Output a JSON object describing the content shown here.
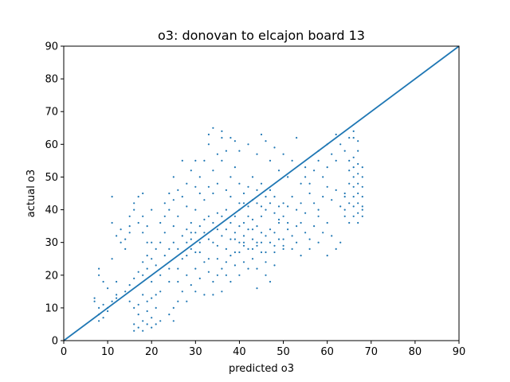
{
  "chart_data": {
    "type": "scatter",
    "title": "o3: donovan to elcajon board 13",
    "xlabel": "predicted o3",
    "ylabel": "actual o3",
    "xlim": [
      0,
      90
    ],
    "ylim": [
      0,
      90
    ],
    "xticks": [
      "0",
      "10",
      "20",
      "30",
      "40",
      "50",
      "60",
      "70",
      "80",
      "90"
    ],
    "yticks": [
      "0",
      "10",
      "20",
      "30",
      "40",
      "50",
      "60",
      "70",
      "80",
      "90"
    ],
    "grid": false,
    "colors": {
      "points": "#1f77b4",
      "line": "#1f77b4"
    },
    "reference_line": {
      "x": [
        0,
        90
      ],
      "y": [
        0,
        90
      ]
    },
    "points": [
      [
        7,
        12
      ],
      [
        7,
        13
      ],
      [
        8,
        6
      ],
      [
        8,
        8
      ],
      [
        8,
        10
      ],
      [
        9,
        11
      ],
      [
        9,
        7
      ],
      [
        10,
        9
      ],
      [
        10,
        10
      ],
      [
        11,
        12
      ],
      [
        12,
        13
      ],
      [
        12,
        14
      ],
      [
        8,
        20
      ],
      [
        8,
        22
      ],
      [
        9,
        18
      ],
      [
        10,
        16
      ],
      [
        12,
        18
      ],
      [
        11,
        25
      ],
      [
        12,
        32
      ],
      [
        11,
        36
      ],
      [
        13,
        34
      ],
      [
        13,
        30
      ],
      [
        14,
        28
      ],
      [
        14,
        31
      ],
      [
        15,
        33
      ],
      [
        15,
        35
      ],
      [
        15,
        38
      ],
      [
        16,
        40
      ],
      [
        16,
        42
      ],
      [
        17,
        36
      ],
      [
        17,
        44
      ],
      [
        18,
        38
      ],
      [
        18,
        33
      ],
      [
        19,
        30
      ],
      [
        19,
        35
      ],
      [
        20,
        40
      ],
      [
        14,
        15
      ],
      [
        15,
        17
      ],
      [
        16,
        19
      ],
      [
        17,
        21
      ],
      [
        18,
        20
      ],
      [
        18,
        24
      ],
      [
        19,
        22
      ],
      [
        19,
        26
      ],
      [
        20,
        18
      ],
      [
        20,
        25
      ],
      [
        21,
        28
      ],
      [
        21,
        23
      ],
      [
        22,
        20
      ],
      [
        22,
        30
      ],
      [
        23,
        26
      ],
      [
        23,
        33
      ],
      [
        24,
        28
      ],
      [
        24,
        22
      ],
      [
        25,
        30
      ],
      [
        25,
        35
      ],
      [
        16,
        3
      ],
      [
        16,
        5
      ],
      [
        17,
        4
      ],
      [
        17,
        8
      ],
      [
        18,
        3
      ],
      [
        18,
        6
      ],
      [
        19,
        5
      ],
      [
        19,
        9
      ],
      [
        20,
        4
      ],
      [
        20,
        7
      ],
      [
        21,
        5
      ],
      [
        21,
        10
      ],
      [
        19,
        12
      ],
      [
        20,
        13
      ],
      [
        18,
        14
      ],
      [
        17,
        11
      ],
      [
        22,
        6
      ],
      [
        16,
        10
      ],
      [
        15,
        12
      ],
      [
        21,
        14
      ],
      [
        22,
        36
      ],
      [
        23,
        38
      ],
      [
        23,
        42
      ],
      [
        24,
        40
      ],
      [
        24,
        45
      ],
      [
        25,
        43
      ],
      [
        25,
        50
      ],
      [
        26,
        46
      ],
      [
        26,
        38
      ],
      [
        27,
        44
      ],
      [
        27,
        55
      ],
      [
        28,
        48
      ],
      [
        28,
        41
      ],
      [
        29,
        52
      ],
      [
        29,
        36
      ],
      [
        30,
        47
      ],
      [
        30,
        55
      ],
      [
        30,
        40
      ],
      [
        26,
        28
      ],
      [
        27,
        32
      ],
      [
        27,
        25
      ],
      [
        28,
        30
      ],
      [
        28,
        34
      ],
      [
        29,
        28
      ],
      [
        29,
        31
      ],
      [
        30,
        33
      ],
      [
        30,
        27
      ],
      [
        31,
        35
      ],
      [
        31,
        30
      ],
      [
        32,
        37
      ],
      [
        32,
        33
      ],
      [
        33,
        31
      ],
      [
        33,
        38
      ],
      [
        34,
        36
      ],
      [
        34,
        30
      ],
      [
        35,
        34
      ],
      [
        35,
        39
      ],
      [
        31,
        45
      ],
      [
        31,
        50
      ],
      [
        32,
        43
      ],
      [
        32,
        55
      ],
      [
        33,
        47
      ],
      [
        33,
        60
      ],
      [
        34,
        52
      ],
      [
        34,
        45
      ],
      [
        35,
        57
      ],
      [
        35,
        48
      ],
      [
        36,
        55
      ],
      [
        36,
        62
      ],
      [
        37,
        46
      ],
      [
        37,
        58
      ],
      [
        38,
        50
      ],
      [
        38,
        44
      ],
      [
        39,
        53
      ],
      [
        39,
        61
      ],
      [
        40,
        48
      ],
      [
        40,
        42
      ],
      [
        36,
        32
      ],
      [
        36,
        38
      ],
      [
        37,
        34
      ],
      [
        37,
        40
      ],
      [
        38,
        31
      ],
      [
        38,
        36
      ],
      [
        39,
        33
      ],
      [
        39,
        38
      ],
      [
        40,
        30
      ],
      [
        40,
        35
      ],
      [
        41,
        36
      ],
      [
        41,
        32
      ],
      [
        42,
        38
      ],
      [
        42,
        34
      ],
      [
        43,
        31
      ],
      [
        43,
        37
      ],
      [
        44,
        35
      ],
      [
        44,
        29
      ],
      [
        45,
        33
      ],
      [
        45,
        38
      ],
      [
        40,
        40
      ],
      [
        41,
        42
      ],
      [
        41,
        45
      ],
      [
        42,
        41
      ],
      [
        42,
        47
      ],
      [
        43,
        43
      ],
      [
        43,
        50
      ],
      [
        44,
        42
      ],
      [
        44,
        46
      ],
      [
        45,
        41
      ],
      [
        45,
        48
      ],
      [
        46,
        44
      ],
      [
        46,
        40
      ],
      [
        47,
        46
      ],
      [
        47,
        42
      ],
      [
        48,
        39
      ],
      [
        48,
        44
      ],
      [
        49,
        41
      ],
      [
        49,
        37
      ],
      [
        50,
        42
      ],
      [
        26,
        18
      ],
      [
        27,
        15
      ],
      [
        28,
        20
      ],
      [
        29,
        17
      ],
      [
        30,
        22
      ],
      [
        31,
        19
      ],
      [
        32,
        24
      ],
      [
        33,
        21
      ],
      [
        34,
        18
      ],
      [
        35,
        25
      ],
      [
        36,
        22
      ],
      [
        37,
        20
      ],
      [
        38,
        26
      ],
      [
        39,
        23
      ],
      [
        40,
        27
      ],
      [
        41,
        24
      ],
      [
        42,
        28
      ],
      [
        43,
        25
      ],
      [
        44,
        30
      ],
      [
        45,
        27
      ],
      [
        24,
        8
      ],
      [
        25,
        10
      ],
      [
        26,
        12
      ],
      [
        25,
        6
      ],
      [
        28,
        12
      ],
      [
        30,
        15
      ],
      [
        32,
        14
      ],
      [
        34,
        14
      ],
      [
        36,
        15
      ],
      [
        38,
        18
      ],
      [
        40,
        20
      ],
      [
        44,
        16
      ],
      [
        46,
        24
      ],
      [
        48,
        27
      ],
      [
        50,
        28
      ],
      [
        33,
        63
      ],
      [
        34,
        65
      ],
      [
        36,
        64
      ],
      [
        38,
        62
      ],
      [
        40,
        58
      ],
      [
        42,
        60
      ],
      [
        44,
        57
      ],
      [
        45,
        63
      ],
      [
        46,
        61
      ],
      [
        47,
        55
      ],
      [
        48,
        59
      ],
      [
        49,
        52
      ],
      [
        50,
        57
      ],
      [
        51,
        50
      ],
      [
        52,
        55
      ],
      [
        53,
        62
      ],
      [
        54,
        48
      ],
      [
        55,
        53
      ],
      [
        46,
        32
      ],
      [
        47,
        30
      ],
      [
        48,
        33
      ],
      [
        49,
        31
      ],
      [
        50,
        29
      ],
      [
        51,
        34
      ],
      [
        52,
        32
      ],
      [
        53,
        30
      ],
      [
        54,
        36
      ],
      [
        55,
        33
      ],
      [
        56,
        31
      ],
      [
        57,
        35
      ],
      [
        58,
        38
      ],
      [
        59,
        33
      ],
      [
        60,
        36
      ],
      [
        61,
        32
      ],
      [
        50,
        38
      ],
      [
        51,
        41
      ],
      [
        52,
        44
      ],
      [
        53,
        40
      ],
      [
        54,
        42
      ],
      [
        55,
        39
      ],
      [
        56,
        45
      ],
      [
        57,
        42
      ],
      [
        58,
        40
      ],
      [
        59,
        44
      ],
      [
        60,
        47
      ],
      [
        61,
        43
      ],
      [
        62,
        46
      ],
      [
        63,
        41
      ],
      [
        64,
        44
      ],
      [
        55,
        50
      ],
      [
        56,
        48
      ],
      [
        57,
        52
      ],
      [
        58,
        55
      ],
      [
        59,
        50
      ],
      [
        60,
        53
      ],
      [
        61,
        57
      ],
      [
        62,
        55
      ],
      [
        63,
        60
      ],
      [
        64,
        58
      ],
      [
        65,
        62
      ],
      [
        66,
        64
      ],
      [
        62,
        63
      ],
      [
        60,
        60
      ],
      [
        58,
        58
      ],
      [
        64,
        38
      ],
      [
        64,
        40
      ],
      [
        64,
        45
      ],
      [
        65,
        36
      ],
      [
        65,
        42
      ],
      [
        65,
        48
      ],
      [
        65,
        52
      ],
      [
        65,
        55
      ],
      [
        66,
        38
      ],
      [
        66,
        41
      ],
      [
        66,
        44
      ],
      [
        66,
        47
      ],
      [
        66,
        50
      ],
      [
        66,
        53
      ],
      [
        66,
        56
      ],
      [
        66,
        62
      ],
      [
        67,
        36
      ],
      [
        67,
        39
      ],
      [
        67,
        42
      ],
      [
        67,
        45
      ],
      [
        67,
        48
      ],
      [
        67,
        51
      ],
      [
        67,
        54
      ],
      [
        67,
        58
      ],
      [
        67,
        61
      ],
      [
        68,
        38
      ],
      [
        68,
        41
      ],
      [
        68,
        44
      ],
      [
        68,
        47
      ],
      [
        68,
        50
      ],
      [
        68,
        53
      ],
      [
        68,
        40
      ],
      [
        63,
        30
      ],
      [
        62,
        28
      ],
      [
        60,
        26
      ],
      [
        58,
        30
      ],
      [
        56,
        28
      ],
      [
        54,
        26
      ],
      [
        52,
        28
      ],
      [
        50,
        31
      ],
      [
        48,
        29
      ],
      [
        46,
        27
      ],
      [
        35,
        20
      ],
      [
        37,
        24
      ],
      [
        39,
        27
      ],
      [
        41,
        29
      ],
      [
        43,
        28
      ],
      [
        45,
        30
      ],
      [
        47,
        34
      ],
      [
        49,
        36
      ],
      [
        51,
        36
      ],
      [
        53,
        35
      ],
      [
        18,
        45
      ],
      [
        11,
        44
      ],
      [
        20,
        30
      ],
      [
        22,
        15
      ],
      [
        24,
        18
      ],
      [
        26,
        22
      ],
      [
        28,
        26
      ],
      [
        29,
        33
      ],
      [
        31,
        27
      ],
      [
        33,
        25
      ],
      [
        35,
        29
      ],
      [
        37,
        28
      ],
      [
        39,
        31
      ],
      [
        41,
        30
      ],
      [
        43,
        34
      ],
      [
        42,
        22
      ],
      [
        44,
        22
      ],
      [
        46,
        20
      ],
      [
        48,
        23
      ],
      [
        47,
        18
      ]
    ]
  }
}
